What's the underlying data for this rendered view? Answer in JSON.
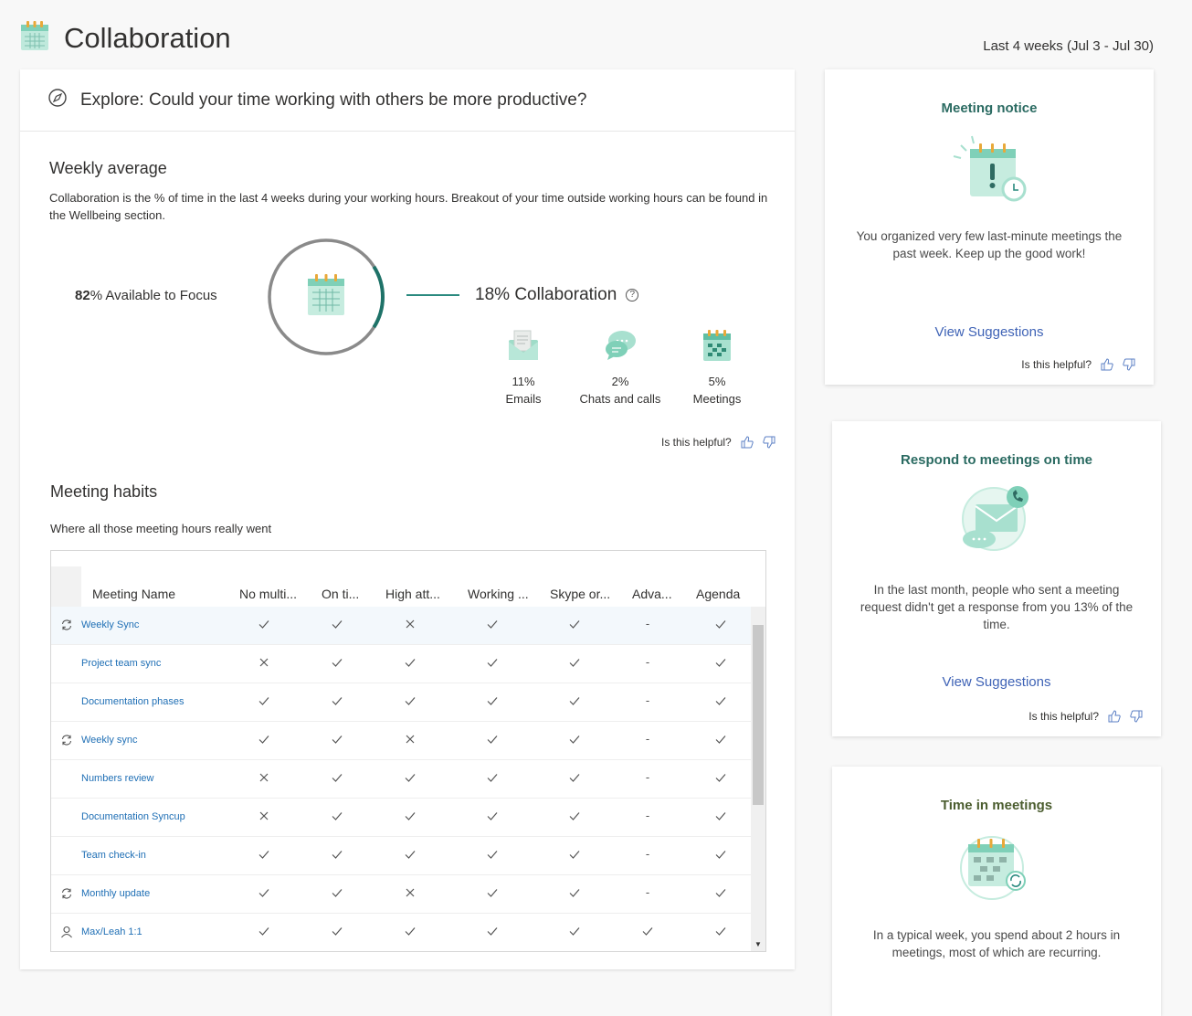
{
  "header": {
    "icon": "calendar-icon",
    "title": "Collaboration",
    "date_range": "Last 4 weeks (Jul 3 - Jul 30)"
  },
  "explore": {
    "icon": "compass-icon",
    "text": "Explore: Could your time working with others be more productive?"
  },
  "weekly": {
    "title": "Weekly average",
    "description": "Collaboration is the % of time in the last 4 weeks during your working hours. Breakout of your time outside working hours can be found in the Wellbeing section.",
    "available_pct": "82",
    "available_label": "% Available to Focus",
    "available_fraction": 0.82,
    "collab_pct": "18",
    "collab_label": "% Collaboration",
    "collab_fraction": 0.18,
    "help_glyph": "?",
    "breakdown": [
      {
        "icon": "email-icon",
        "pct": "11%",
        "label": "Emails"
      },
      {
        "icon": "chat-icon",
        "pct": "2%",
        "label": "Chats and calls"
      },
      {
        "icon": "meetings-calendar-icon",
        "pct": "5%",
        "label": "Meetings"
      }
    ],
    "helpful_label": "Is this helpful?"
  },
  "habits": {
    "title": "Meeting habits",
    "description": "Where all those meeting hours really went",
    "columns": [
      "Meeting Name",
      "No multi...",
      "On ti...",
      "High att...",
      "Working ...",
      "Skype or...",
      "Adva...",
      "Agenda"
    ],
    "rows": [
      {
        "icon": "recurring-icon",
        "name": "Weekly Sync",
        "cells": [
          "check",
          "check",
          "cross",
          "check",
          "check",
          "dash",
          "check"
        ]
      },
      {
        "icon": "",
        "name": "Project team sync",
        "cells": [
          "cross",
          "check",
          "check",
          "check",
          "check",
          "dash",
          "check"
        ]
      },
      {
        "icon": "",
        "name": "Documentation phases",
        "cells": [
          "check",
          "check",
          "check",
          "check",
          "check",
          "dash",
          "check"
        ]
      },
      {
        "icon": "recurring-icon",
        "name": "Weekly sync",
        "cells": [
          "check",
          "check",
          "cross",
          "check",
          "check",
          "dash",
          "check"
        ]
      },
      {
        "icon": "",
        "name": "Numbers review",
        "cells": [
          "cross",
          "check",
          "check",
          "check",
          "check",
          "dash",
          "check"
        ]
      },
      {
        "icon": "",
        "name": "Documentation Syncup",
        "cells": [
          "cross",
          "check",
          "check",
          "check",
          "check",
          "dash",
          "check"
        ]
      },
      {
        "icon": "",
        "name": "Team check-in",
        "cells": [
          "check",
          "check",
          "check",
          "check",
          "check",
          "dash",
          "check"
        ]
      },
      {
        "icon": "recurring-icon",
        "name": "Monthly update",
        "cells": [
          "check",
          "check",
          "cross",
          "check",
          "check",
          "dash",
          "check"
        ]
      },
      {
        "icon": "person-icon",
        "name": "Max/Leah 1:1",
        "cells": [
          "check",
          "check",
          "check",
          "check",
          "check",
          "check",
          "check"
        ]
      }
    ],
    "dash_glyph": "-",
    "scroll_down_glyph": "▼"
  },
  "cards": [
    {
      "title": "Meeting notice",
      "illustration": "calendar-alert-icon",
      "body": "You organized very few last-minute meetings the past week. Keep up the good work!",
      "link": "View Suggestions",
      "helpful": "Is this helpful?"
    },
    {
      "title": "Respond to meetings on time",
      "illustration": "envelope-phone-icon",
      "body": "In the last month, people who sent a meeting request didn't get a response from you 13% of the time.",
      "link": "View Suggestions",
      "helpful": "Is this helpful?"
    },
    {
      "title": "Time in meetings",
      "illustration": "recurring-calendar-icon",
      "body": "In a typical week, you spend about 2 hours in meetings, most of which are recurring."
    }
  ],
  "colors": {
    "accent_teal": "#2a8a7f",
    "mint": "#a8e0cf",
    "ring_gray": "#8a8a8a",
    "link_blue": "#1f6fb5",
    "card_link": "#3f63b6"
  }
}
